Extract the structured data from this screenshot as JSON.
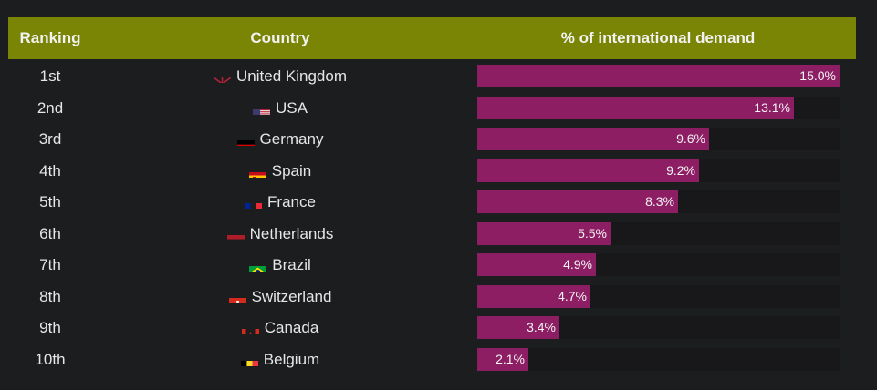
{
  "colors": {
    "header_bg": "#7a8505",
    "bar": "#8d1e64",
    "background": "#1c1d1f"
  },
  "header": {
    "ranking": "Ranking",
    "country": "Country",
    "pct": "% of international demand"
  },
  "chart_data": {
    "type": "bar",
    "orientation": "horizontal",
    "title": "",
    "xlabel": "% of international demand",
    "ylabel": "",
    "xlim": [
      0,
      15
    ],
    "grid": false,
    "legend": "none",
    "columns": [
      "Ranking",
      "Country",
      "% of international demand"
    ],
    "ranks": [
      "1st",
      "2nd",
      "3rd",
      "4th",
      "5th",
      "6th",
      "7th",
      "8th",
      "9th",
      "10th"
    ],
    "categories": [
      "United Kingdom",
      "USA",
      "Germany",
      "Spain",
      "France",
      "Netherlands",
      "Brazil",
      "Switzerland",
      "Canada",
      "Belgium"
    ],
    "flags": [
      "uk-flag-icon",
      "usa-flag-icon",
      "germany-flag-icon",
      "spain-flag-icon",
      "france-flag-icon",
      "netherlands-flag-icon",
      "brazil-flag-icon",
      "switzerland-flag-icon",
      "canada-flag-icon",
      "belgium-flag-icon"
    ],
    "values": [
      15.0,
      13.1,
      9.6,
      9.2,
      8.3,
      5.5,
      4.9,
      4.7,
      3.4,
      2.1
    ],
    "labels": [
      "15.0%",
      "13.1%",
      "9.6%",
      "9.2%",
      "8.3%",
      "5.5%",
      "4.9%",
      "4.7%",
      "3.4%",
      "2.1%"
    ]
  }
}
